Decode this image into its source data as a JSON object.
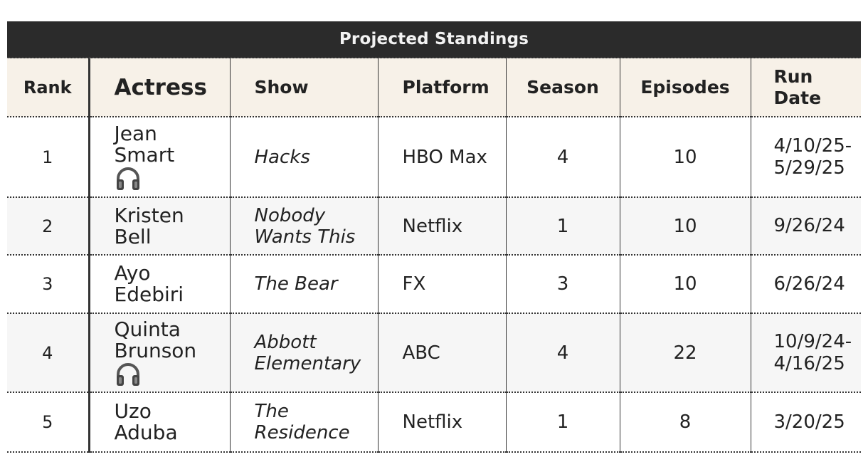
{
  "title": "Projected Standings",
  "headers": {
    "rank": "Rank",
    "actress": "Actress",
    "show": "Show",
    "platform": "Platform",
    "season": "Season",
    "episodes": "Episodes",
    "run_date_1": "Run",
    "run_date_2": "Date"
  },
  "rows": [
    {
      "rank": "1",
      "actress_first": "Jean",
      "actress_last": "Smart",
      "headphones": true,
      "show_1": "Hacks",
      "show_2": "",
      "platform": "HBO Max",
      "season": "4",
      "episodes": "10",
      "date_1": "4/10/25-",
      "date_2": "5/29/25"
    },
    {
      "rank": "2",
      "actress_first": "Kristen",
      "actress_last": "Bell",
      "headphones": false,
      "show_1": "Nobody",
      "show_2": "Wants This",
      "platform": "Netflix",
      "season": "1",
      "episodes": "10",
      "date_1": "9/26/24",
      "date_2": ""
    },
    {
      "rank": "3",
      "actress_first": "Ayo",
      "actress_last": "Edebiri",
      "headphones": false,
      "show_1": "The Bear",
      "show_2": "",
      "platform": "FX",
      "season": "3",
      "episodes": "10",
      "date_1": "6/26/24",
      "date_2": ""
    },
    {
      "rank": "4",
      "actress_first": "Quinta",
      "actress_last": "Brunson",
      "headphones": true,
      "show_1": "Abbott",
      "show_2": "Elementary",
      "platform": "ABC",
      "season": "4",
      "episodes": "22",
      "date_1": "10/9/24-",
      "date_2": "4/16/25"
    },
    {
      "rank": "5",
      "actress_first": "Uzo",
      "actress_last": "Aduba",
      "headphones": false,
      "show_1": "The",
      "show_2": "Residence",
      "platform": "Netflix",
      "season": "1",
      "episodes": "8",
      "date_1": "3/20/25",
      "date_2": ""
    }
  ],
  "icons": {
    "headphones": "headphones-icon"
  }
}
